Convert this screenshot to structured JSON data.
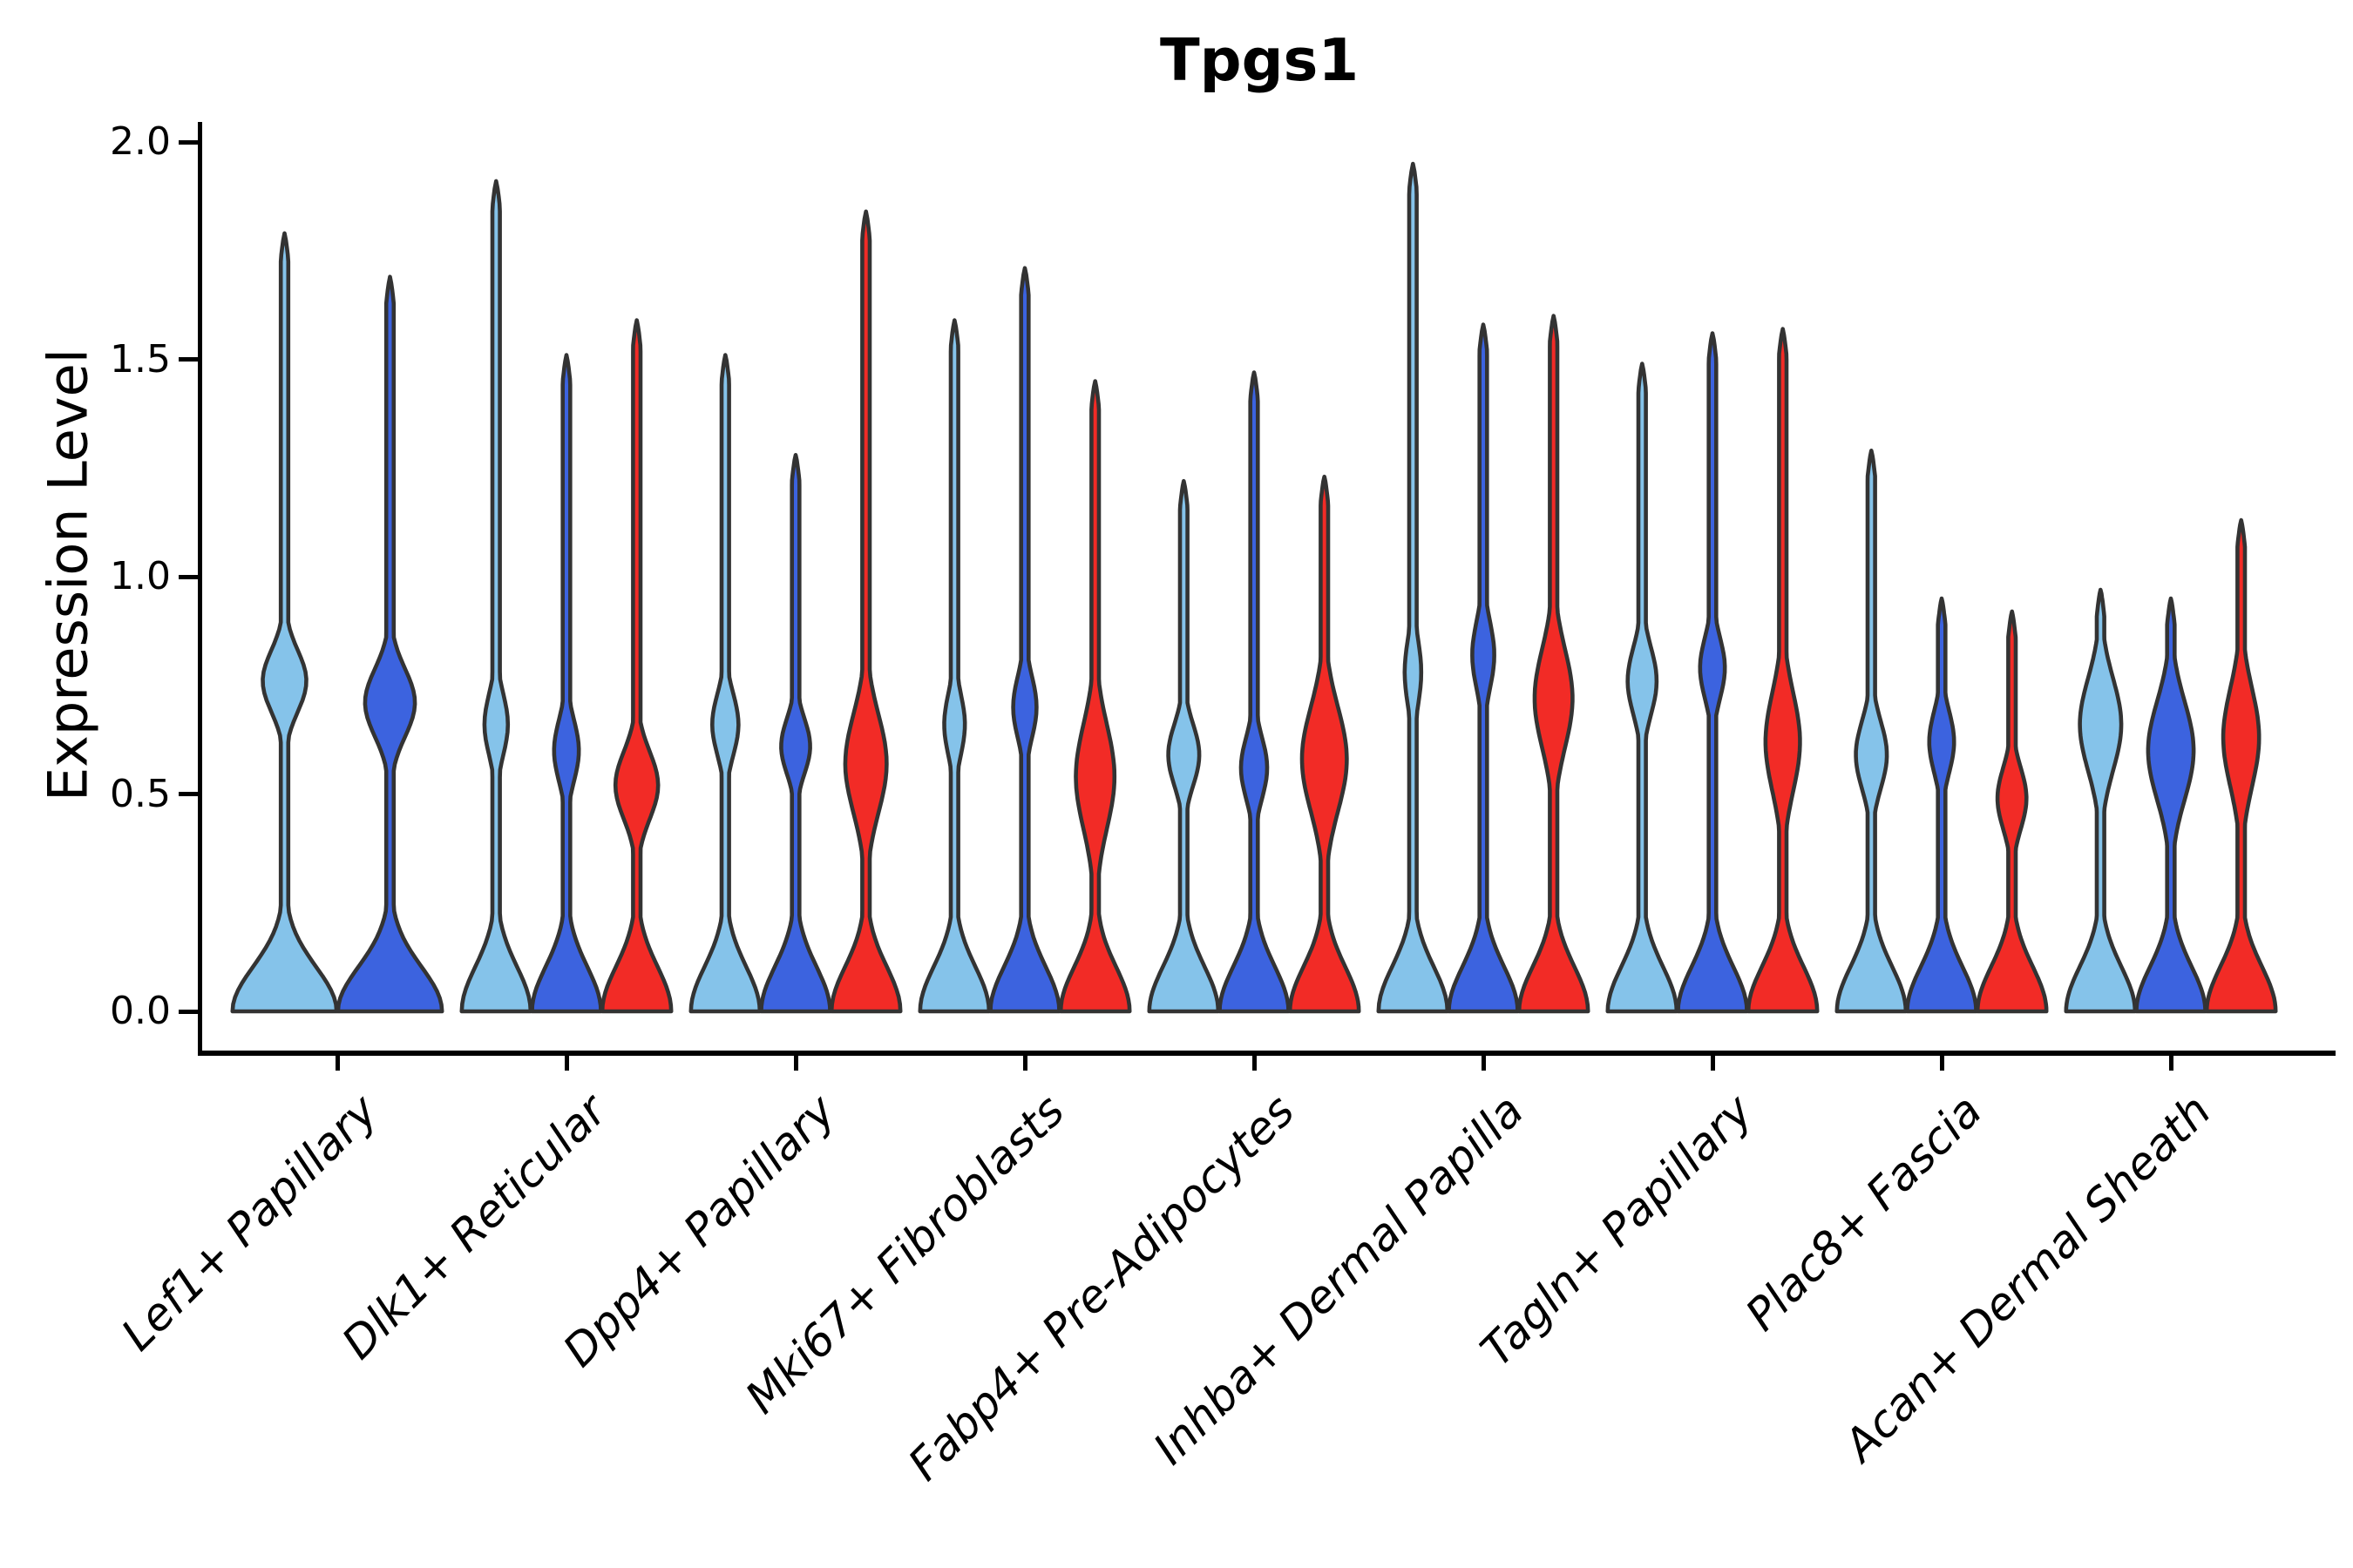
{
  "chart_data": {
    "type": "violin",
    "title": "Tpgs1",
    "xlabel": "",
    "ylabel": "Expression Level",
    "ylim": [
      0,
      2.05
    ],
    "grid": false,
    "legend": "none",
    "yticks": [
      {
        "label": "0.0",
        "value": 0.0
      },
      {
        "label": "0.5",
        "value": 0.5
      },
      {
        "label": "1.0",
        "value": 1.0
      },
      {
        "label": "1.5",
        "value": 1.5
      },
      {
        "label": "2.0",
        "value": 2.0
      }
    ],
    "categories": [
      "Lef1+ Papillary",
      "Dlk1+ Reticular",
      "Dpp4+ Papillary",
      "Mki67+ Fibroblasts",
      "Fabp4+ Pre-Adipocytes",
      "Inhba+ Dermal Papilla",
      "Tagln+ Papillary",
      "Plac8+ Fascia",
      "Acan+ Dermal Sheath"
    ],
    "series": [
      {
        "name": "light-blue",
        "color": "#85C3EA",
        "violins": [
          {
            "max_expression": 1.79,
            "bulge_center": 0.76,
            "bulge_sigma": 0.1,
            "bulge_amp": 0.42
          },
          {
            "max_expression": 1.91,
            "bulge_center": 0.66,
            "bulge_sigma": 0.1,
            "bulge_amp": 0.34
          },
          {
            "max_expression": 1.51,
            "bulge_center": 0.66,
            "bulge_sigma": 0.1,
            "bulge_amp": 0.38
          },
          {
            "max_expression": 1.59,
            "bulge_center": 0.66,
            "bulge_sigma": 0.1,
            "bulge_amp": 0.3
          },
          {
            "max_expression": 1.22,
            "bulge_center": 0.59,
            "bulge_sigma": 0.1,
            "bulge_amp": 0.45
          },
          {
            "max_expression": 1.95,
            "bulge_center": 0.78,
            "bulge_sigma": 0.11,
            "bulge_amp": 0.24
          },
          {
            "max_expression": 1.49,
            "bulge_center": 0.76,
            "bulge_sigma": 0.11,
            "bulge_amp": 0.42
          },
          {
            "max_expression": 1.29,
            "bulge_center": 0.59,
            "bulge_sigma": 0.11,
            "bulge_amp": 0.45
          },
          {
            "max_expression": 0.97,
            "bulge_center": 0.66,
            "bulge_sigma": 0.15,
            "bulge_amp": 0.6
          }
        ]
      },
      {
        "name": "dark-blue",
        "color": "#3C63DF",
        "violins": [
          {
            "max_expression": 1.69,
            "bulge_center": 0.71,
            "bulge_sigma": 0.11,
            "bulge_amp": 0.48
          },
          {
            "max_expression": 1.51,
            "bulge_center": 0.6,
            "bulge_sigma": 0.1,
            "bulge_amp": 0.36
          },
          {
            "max_expression": 1.28,
            "bulge_center": 0.61,
            "bulge_sigma": 0.09,
            "bulge_amp": 0.42
          },
          {
            "max_expression": 1.71,
            "bulge_center": 0.7,
            "bulge_sigma": 0.1,
            "bulge_amp": 0.34
          },
          {
            "max_expression": 1.47,
            "bulge_center": 0.56,
            "bulge_sigma": 0.1,
            "bulge_amp": 0.38
          },
          {
            "max_expression": 1.58,
            "bulge_center": 0.82,
            "bulge_sigma": 0.11,
            "bulge_amp": 0.32
          },
          {
            "max_expression": 1.56,
            "bulge_center": 0.79,
            "bulge_sigma": 0.1,
            "bulge_amp": 0.36
          },
          {
            "max_expression": 0.95,
            "bulge_center": 0.62,
            "bulge_sigma": 0.1,
            "bulge_amp": 0.36
          },
          {
            "max_expression": 0.95,
            "bulge_center": 0.6,
            "bulge_sigma": 0.16,
            "bulge_amp": 0.66
          }
        ]
      },
      {
        "name": "red",
        "color": "#F22B26",
        "violins": [
          null,
          {
            "max_expression": 1.59,
            "bulge_center": 0.52,
            "bulge_sigma": 0.11,
            "bulge_amp": 0.62
          },
          {
            "max_expression": 1.84,
            "bulge_center": 0.57,
            "bulge_sigma": 0.16,
            "bulge_amp": 0.6
          },
          {
            "max_expression": 1.45,
            "bulge_center": 0.54,
            "bulge_sigma": 0.17,
            "bulge_amp": 0.56
          },
          {
            "max_expression": 1.23,
            "bulge_center": 0.58,
            "bulge_sigma": 0.17,
            "bulge_amp": 0.65
          },
          {
            "max_expression": 1.6,
            "bulge_center": 0.72,
            "bulge_sigma": 0.16,
            "bulge_amp": 0.55
          },
          {
            "max_expression": 1.57,
            "bulge_center": 0.62,
            "bulge_sigma": 0.16,
            "bulge_amp": 0.5
          },
          {
            "max_expression": 0.92,
            "bulge_center": 0.49,
            "bulge_sigma": 0.1,
            "bulge_amp": 0.42
          },
          {
            "max_expression": 1.13,
            "bulge_center": 0.63,
            "bulge_sigma": 0.16,
            "bulge_amp": 0.52
          }
        ]
      }
    ],
    "style": {
      "outline_color": "#333333",
      "outline_width": 4.6,
      "axis_color": "#000000",
      "background": "#FFFFFF"
    }
  }
}
